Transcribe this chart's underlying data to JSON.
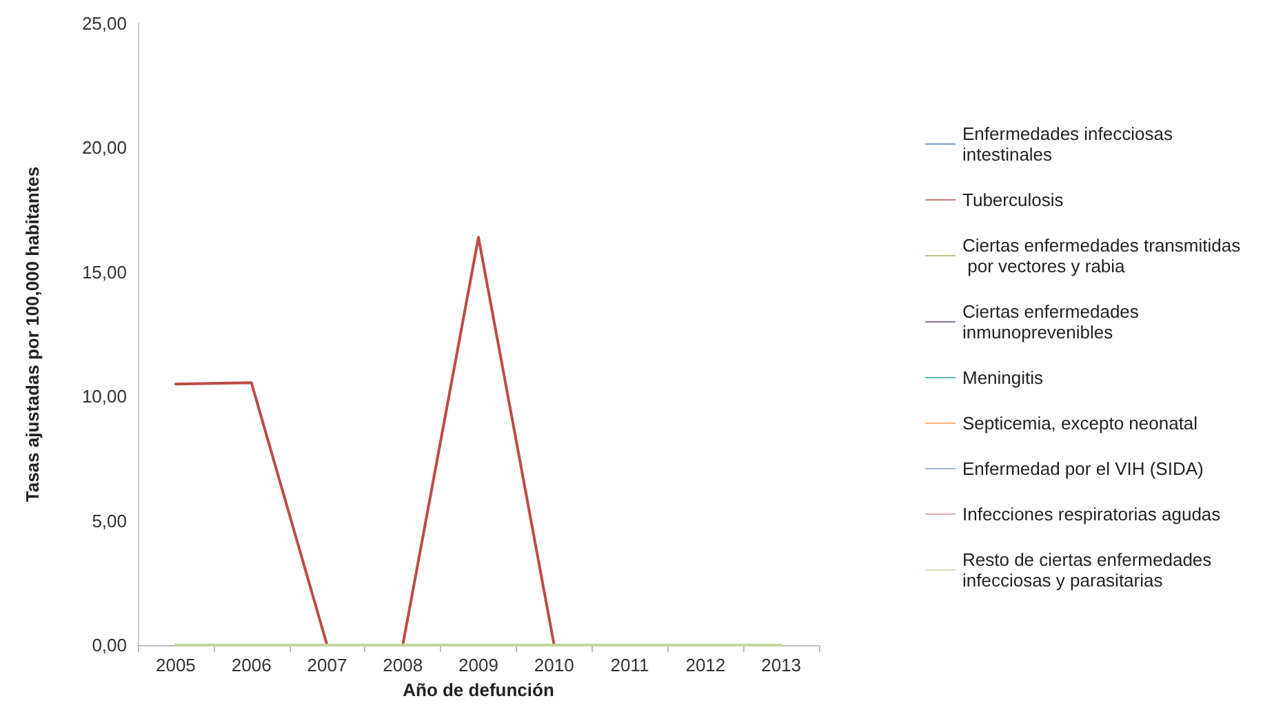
{
  "chart_data": {
    "type": "line",
    "xlabel": "Año de defunción",
    "ylabel": "Tasas ajustadas por 100,000 habitantes",
    "categories": [
      "2005",
      "2006",
      "2007",
      "2008",
      "2009",
      "2010",
      "2011",
      "2012",
      "2013"
    ],
    "series": [
      {
        "name": "Enfermedades infecciosas intestinales",
        "color": "#4a7ebb",
        "values": [
          null,
          null,
          null,
          null,
          null,
          null,
          null,
          null,
          null
        ]
      },
      {
        "name": "Tuberculosis",
        "color": "#be4b48",
        "values": [
          10.5,
          10.55,
          0,
          0,
          16.4,
          0,
          null,
          null,
          null
        ]
      },
      {
        "name": "Ciertas enfermedades transmitidas por vectores y rabia",
        "color": "#98b954",
        "values": [
          null,
          null,
          null,
          null,
          null,
          null,
          null,
          null,
          null
        ]
      },
      {
        "name": "Ciertas enfermedades inmunoprevenibles",
        "color": "#604a7b",
        "values": [
          null,
          null,
          null,
          null,
          null,
          null,
          null,
          null,
          null
        ]
      },
      {
        "name": "Meningitis",
        "color": "#31a0b0",
        "values": [
          null,
          null,
          null,
          null,
          null,
          null,
          null,
          null,
          null
        ]
      },
      {
        "name": "Septicemia, excepto neonatal",
        "color": "#f79646",
        "values": [
          null,
          null,
          null,
          null,
          null,
          null,
          null,
          null,
          null
        ]
      },
      {
        "name": "Enfermedad por el VIH (SIDA)",
        "color": "#7f9fcf",
        "values": [
          null,
          null,
          null,
          null,
          null,
          null,
          null,
          null,
          null
        ]
      },
      {
        "name": "Infecciones respiratorias agudas",
        "color": "#d99694",
        "values": [
          null,
          null,
          null,
          null,
          null,
          null,
          null,
          null,
          null
        ]
      },
      {
        "name": "Resto de ciertas enfermedades infecciosas y parasitarias",
        "color": "#c3d69b",
        "values": [
          0,
          0,
          0,
          0,
          0,
          0,
          0,
          0,
          0
        ]
      }
    ],
    "ylim": [
      0,
      25
    ],
    "yticks": [
      {
        "value": 0,
        "label": "0,00"
      },
      {
        "value": 5,
        "label": "5,00"
      },
      {
        "value": 10,
        "label": "10,00"
      },
      {
        "value": 15,
        "label": "15,00"
      },
      {
        "value": 20,
        "label": "20,00"
      },
      {
        "value": 25,
        "label": "25,00"
      }
    ],
    "grid": false,
    "legend": "right",
    "marker": "none",
    "line_style": "solid"
  }
}
